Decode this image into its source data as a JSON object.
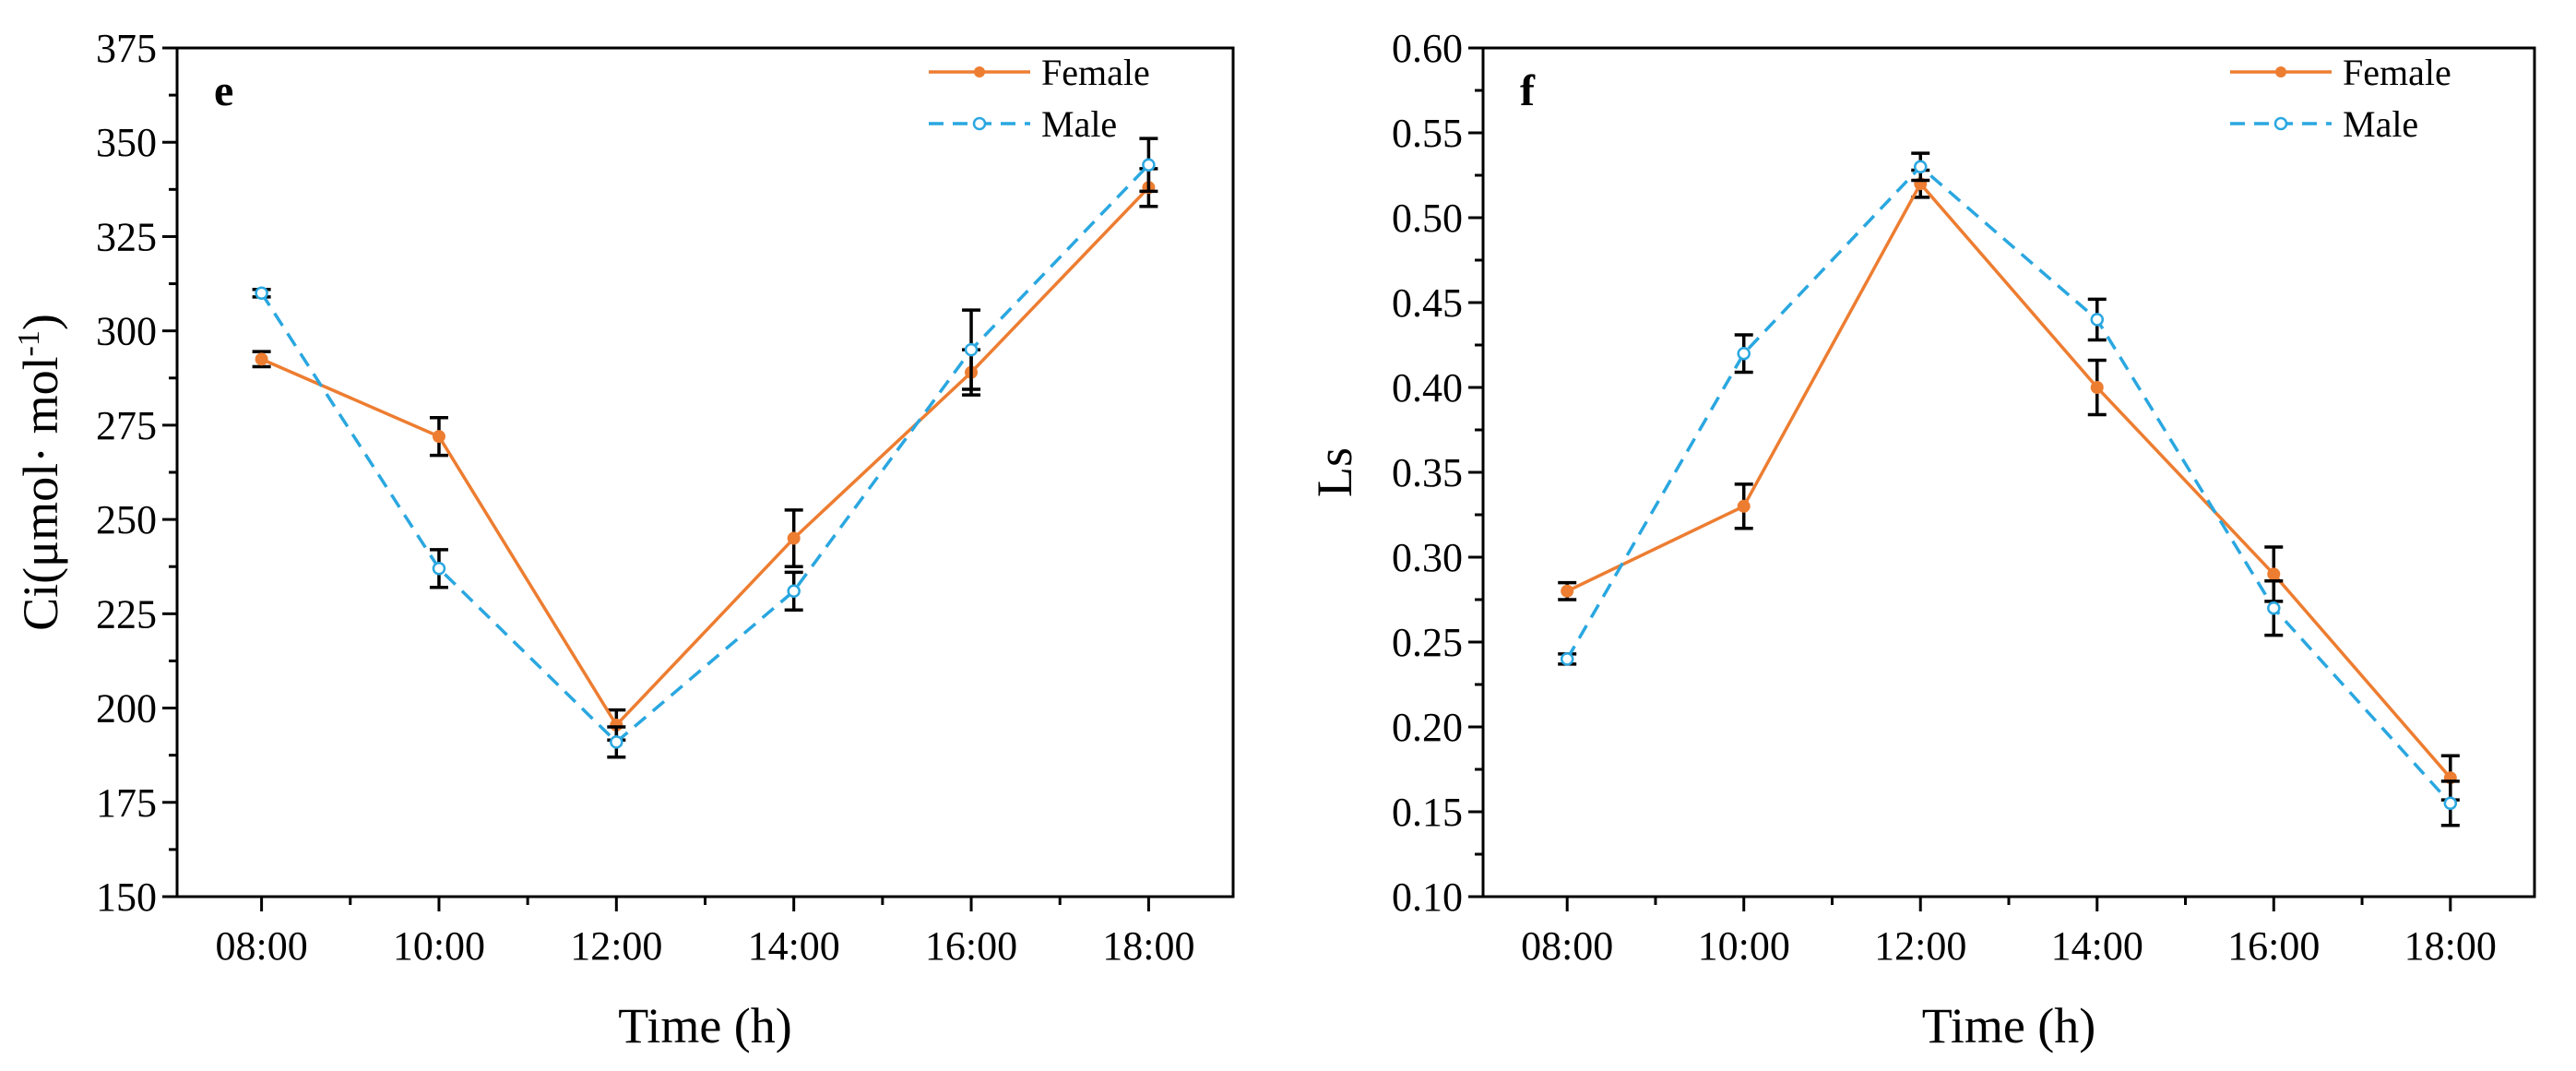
{
  "chart_data": [
    {
      "type": "line",
      "panel_label": "e",
      "xlabel": "Time (h)",
      "ylabel_main": "Ci(μmol· mol",
      "ylabel_sup": "-1",
      "ylabel_close": ")",
      "categories": [
        "08:00",
        "10:00",
        "12:00",
        "14:00",
        "16:00",
        "18:00"
      ],
      "ylim": [
        150,
        375
      ],
      "yticks": [
        150,
        175,
        200,
        225,
        250,
        275,
        300,
        325,
        350,
        375
      ],
      "legend_position": "top-right",
      "series": [
        {
          "name": "Female",
          "color": "#ed7d31",
          "style": "solid",
          "marker": "filled-circle",
          "values": [
            292.5,
            272.0,
            195.5,
            245.0,
            289.0,
            338.0
          ],
          "errors": [
            2.0,
            5.0,
            4.0,
            7.5,
            6.0,
            5.0
          ]
        },
        {
          "name": "Male",
          "color": "#2aa7e0",
          "style": "dashed",
          "marker": "open-circle",
          "values": [
            310.0,
            237.0,
            191.0,
            231.0,
            295.0,
            344.0
          ],
          "errors": [
            1.0,
            5.0,
            4.0,
            5.0,
            10.5,
            7.0
          ]
        }
      ]
    },
    {
      "type": "line",
      "panel_label": "f",
      "xlabel": "Time (h)",
      "ylabel_main": "Ls",
      "ylabel_sup": "",
      "ylabel_close": "",
      "categories": [
        "08:00",
        "10:00",
        "12:00",
        "14:00",
        "16:00",
        "18:00"
      ],
      "ylim": [
        0.1,
        0.6
      ],
      "yticks": [
        "0.10",
        "0.15",
        "0.20",
        "0.25",
        "0.30",
        "0.35",
        "0.40",
        "0.45",
        "0.50",
        "0.55",
        "0.60"
      ],
      "legend_position": "top-right",
      "series": [
        {
          "name": "Female",
          "color": "#ed7d31",
          "style": "solid",
          "marker": "filled-circle",
          "values": [
            0.28,
            0.33,
            0.52,
            0.4,
            0.29,
            0.17
          ],
          "errors": [
            0.005,
            0.013,
            0.008,
            0.016,
            0.016,
            0.013
          ]
        },
        {
          "name": "Male",
          "color": "#2aa7e0",
          "style": "dashed",
          "marker": "open-circle",
          "values": [
            0.24,
            0.42,
            0.53,
            0.44,
            0.27,
            0.155
          ],
          "errors": [
            0.003,
            0.011,
            0.008,
            0.012,
            0.016,
            0.013
          ]
        }
      ]
    }
  ]
}
